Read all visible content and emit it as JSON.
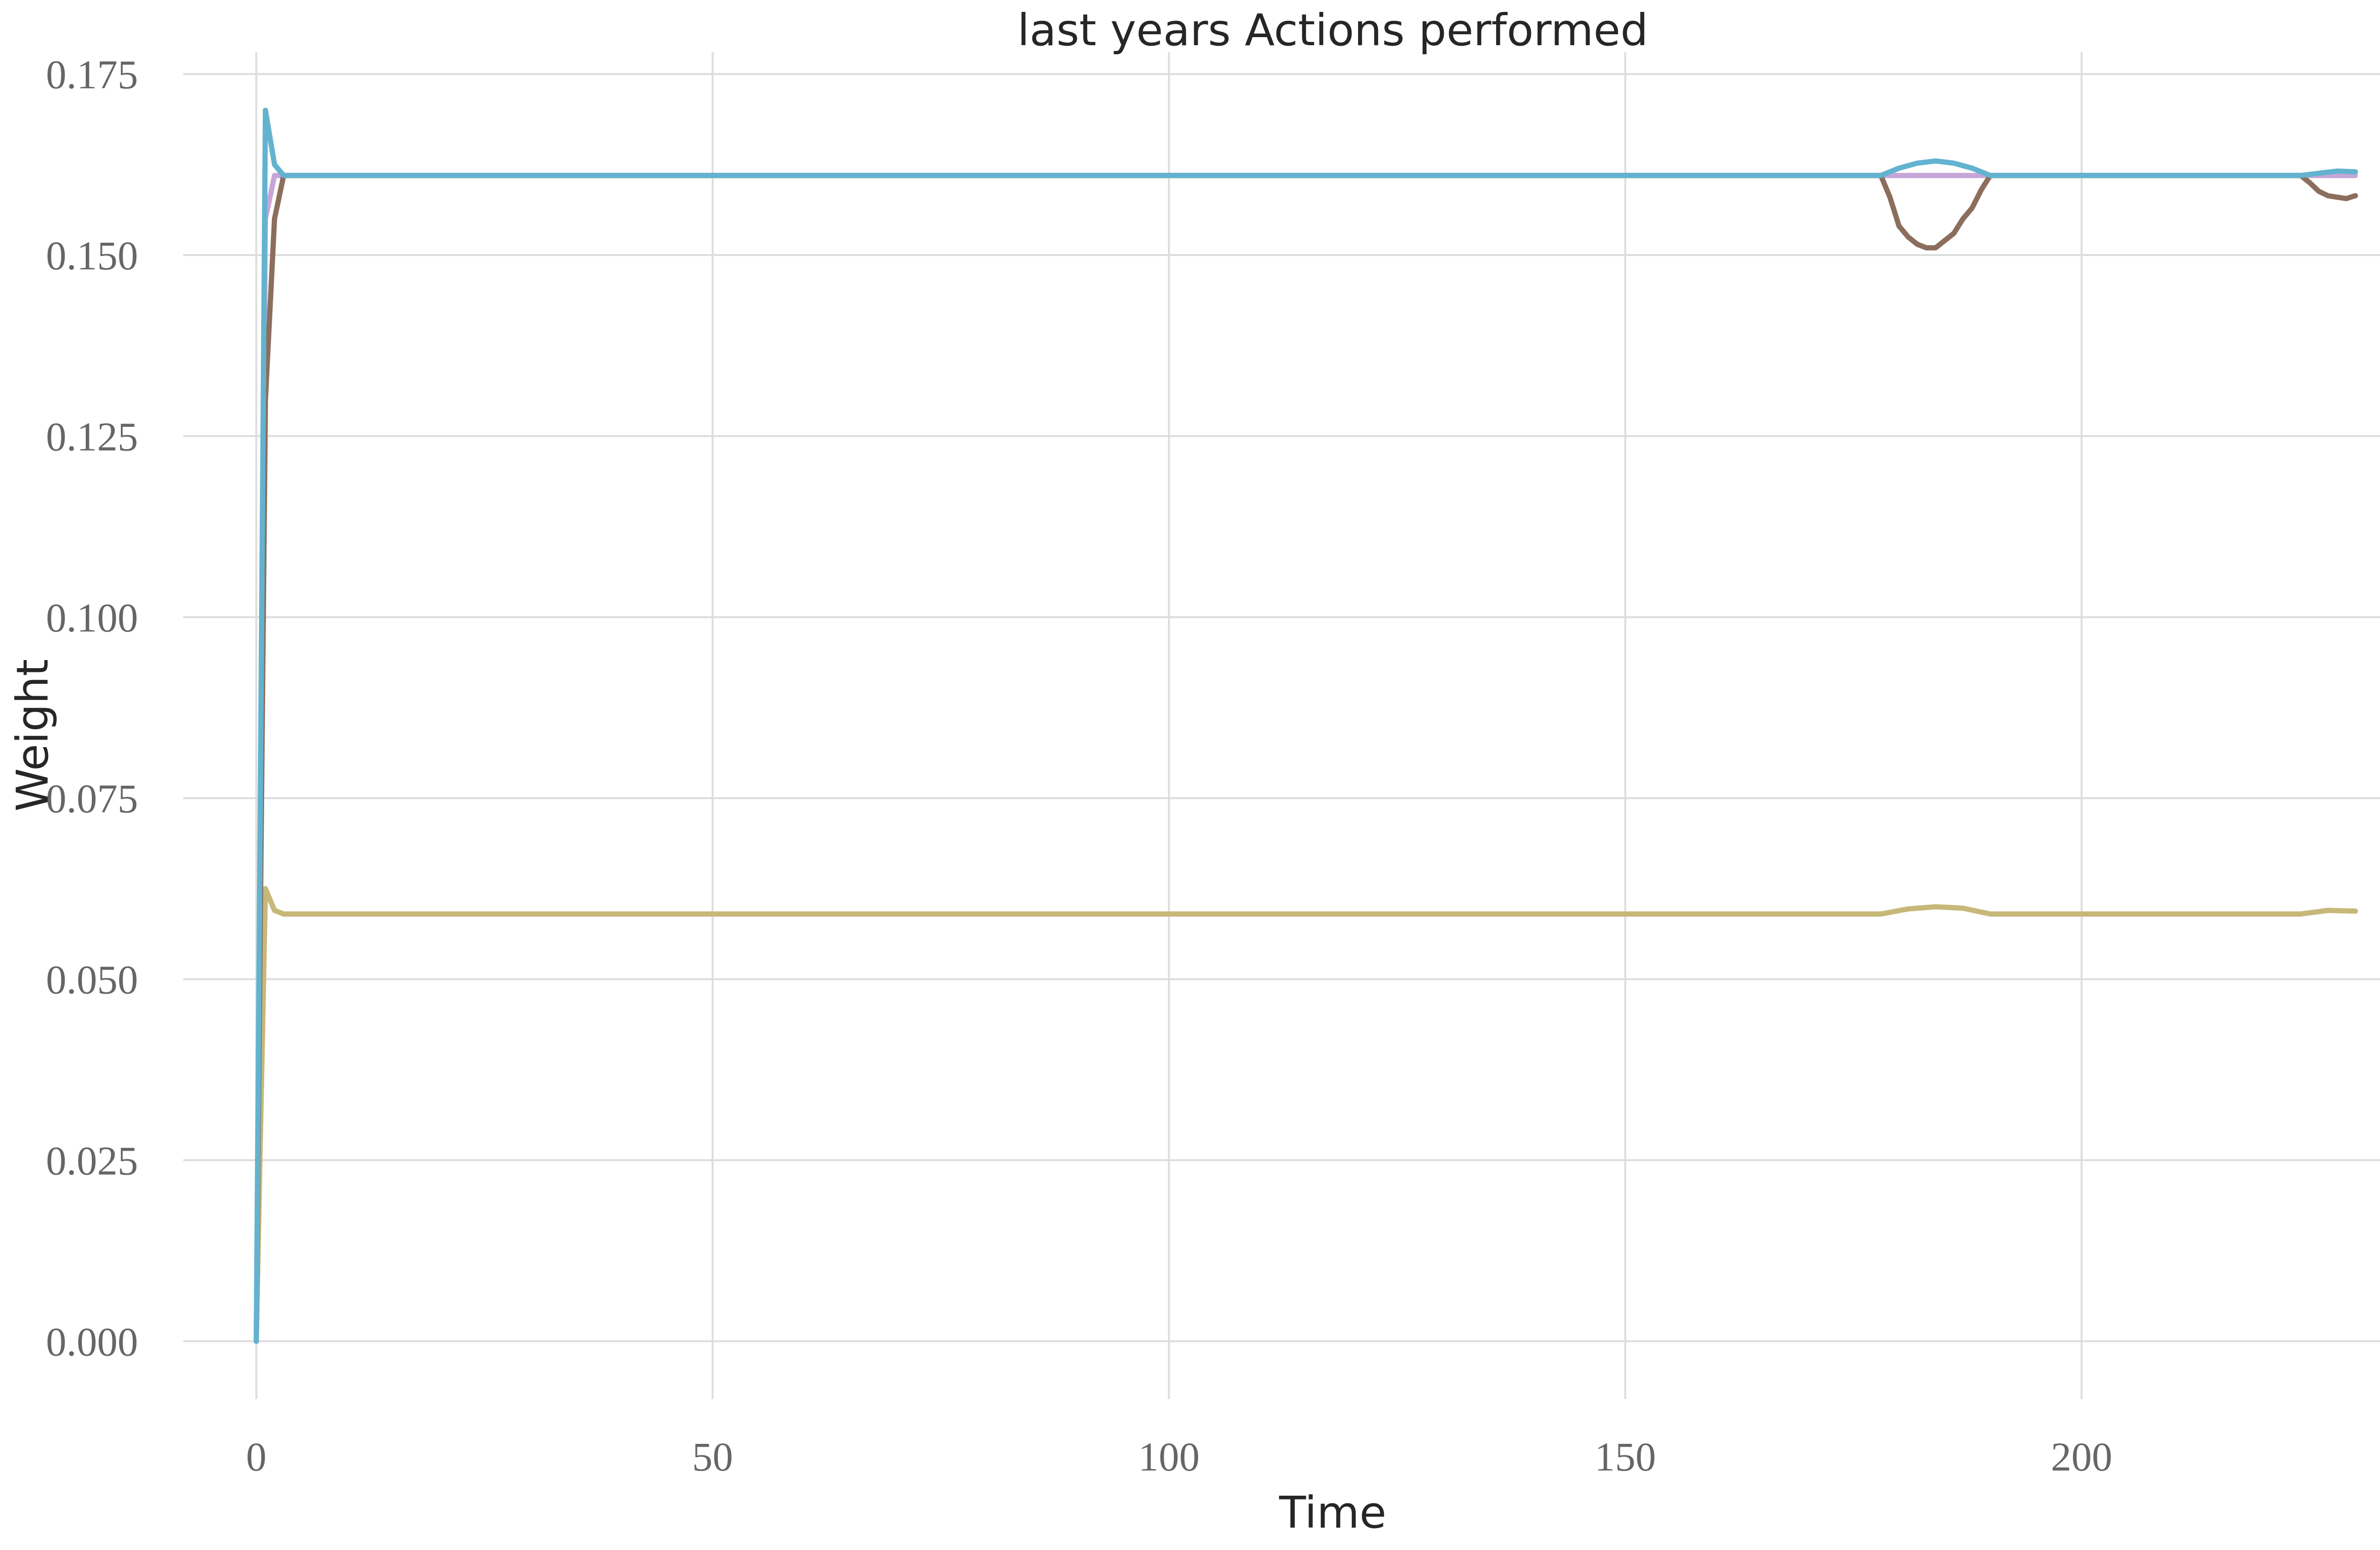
{
  "chart_data": {
    "type": "line",
    "title": "last years Actions performed",
    "xlabel": "Time",
    "ylabel": "Weight",
    "xlim": [
      -8,
      240
    ],
    "ylim": [
      -0.008,
      0.178
    ],
    "xticks": [
      0,
      50,
      100,
      150,
      200
    ],
    "xtick_labels": [
      "0",
      "50",
      "100",
      "150",
      "200"
    ],
    "yticks": [
      0.0,
      0.025,
      0.05,
      0.075,
      0.1,
      0.125,
      0.15,
      0.175
    ],
    "ytick_labels": [
      "0.000",
      "0.025",
      "0.050",
      "0.075",
      "0.100",
      "0.125",
      "0.150",
      "0.175"
    ],
    "grid": true,
    "series": [
      {
        "color": "#c6a6d8",
        "points": [
          [
            0,
            0.0
          ],
          [
            1,
            0.155
          ],
          [
            2,
            0.161
          ],
          [
            3,
            0.161
          ],
          [
            230,
            0.161
          ]
        ]
      },
      {
        "color": "#c7b87a",
        "points": [
          [
            0,
            0.0
          ],
          [
            1,
            0.0625
          ],
          [
            2,
            0.0595
          ],
          [
            3,
            0.059
          ],
          [
            178,
            0.059
          ],
          [
            181,
            0.0597
          ],
          [
            184,
            0.06
          ],
          [
            187,
            0.0598
          ],
          [
            190,
            0.059
          ],
          [
            224,
            0.059
          ],
          [
            227,
            0.0595
          ],
          [
            230,
            0.0594
          ]
        ]
      },
      {
        "color": "#8c6e5d",
        "points": [
          [
            0,
            0.0
          ],
          [
            1,
            0.13
          ],
          [
            2,
            0.155
          ],
          [
            3,
            0.161
          ],
          [
            178,
            0.161
          ],
          [
            179,
            0.158
          ],
          [
            180,
            0.154
          ],
          [
            181,
            0.1525
          ],
          [
            182,
            0.1515
          ],
          [
            183,
            0.151
          ],
          [
            184,
            0.151
          ],
          [
            185,
            0.152
          ],
          [
            186,
            0.153
          ],
          [
            187,
            0.155
          ],
          [
            188,
            0.1565
          ],
          [
            189,
            0.159
          ],
          [
            190,
            0.161
          ],
          [
            224,
            0.161
          ],
          [
            225,
            0.16
          ],
          [
            226,
            0.1588
          ],
          [
            227,
            0.1582
          ],
          [
            228,
            0.158
          ],
          [
            229,
            0.1578
          ],
          [
            230,
            0.1582
          ]
        ]
      },
      {
        "color": "#63b3cf",
        "points": [
          [
            0,
            0.0
          ],
          [
            1,
            0.17
          ],
          [
            2,
            0.1625
          ],
          [
            3,
            0.161
          ],
          [
            178,
            0.161
          ],
          [
            180,
            0.162
          ],
          [
            182,
            0.1627
          ],
          [
            184,
            0.163
          ],
          [
            186,
            0.1627
          ],
          [
            188,
            0.162
          ],
          [
            190,
            0.161
          ],
          [
            224,
            0.161
          ],
          [
            226,
            0.1613
          ],
          [
            228,
            0.1616
          ],
          [
            230,
            0.1615
          ]
        ]
      }
    ]
  }
}
